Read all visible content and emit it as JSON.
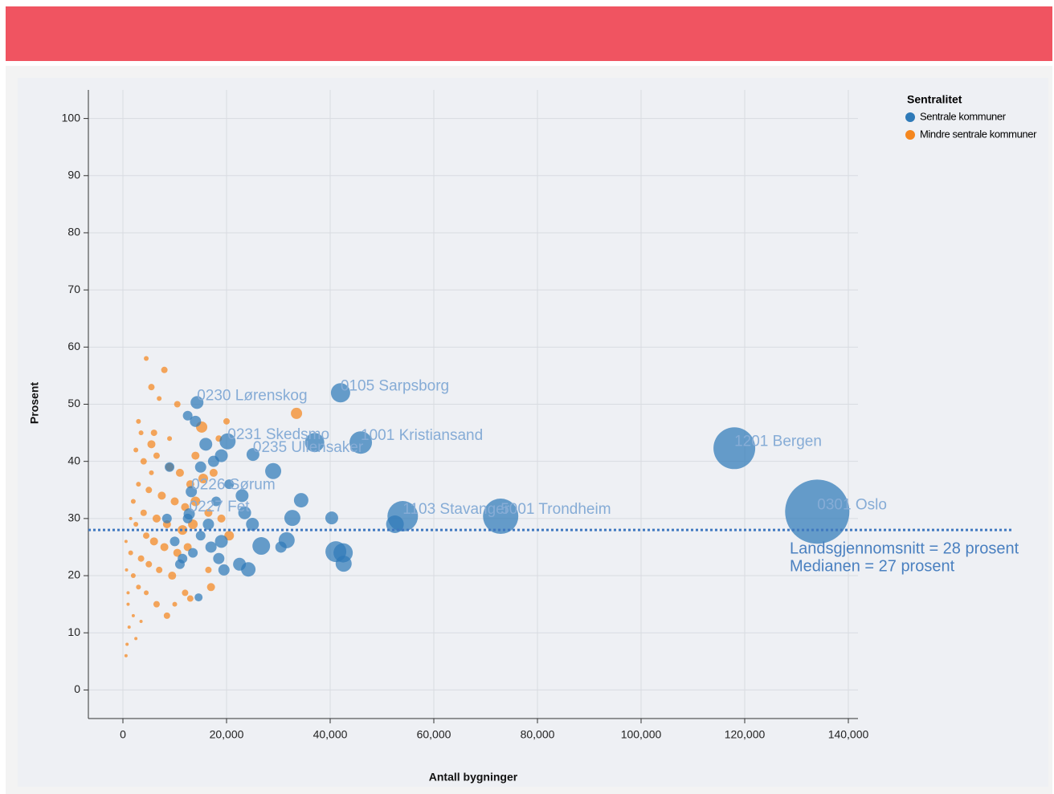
{
  "chart_data": {
    "type": "bubble",
    "x_label": "Antall bygninger",
    "y_label": "Prosent",
    "legend_title": "Sentralitet",
    "legend": "top-right",
    "grid": true,
    "xlim": [
      -6667,
      141860
    ],
    "xticks": [
      0,
      {
        "value": 20000,
        "label": "20,000"
      },
      {
        "value": 40000,
        "label": "40,000"
      },
      {
        "value": 60000,
        "label": "60,000"
      },
      {
        "value": 80000,
        "label": "80,000"
      },
      {
        "value": 100000,
        "label": "100,000"
      },
      {
        "value": 120000,
        "label": "120,000"
      },
      {
        "value": 140000,
        "label": "140,000"
      }
    ],
    "ylim": [
      -5,
      105
    ],
    "yticks": [
      0,
      10,
      20,
      30,
      40,
      50,
      60,
      70,
      80,
      90,
      100
    ],
    "reference_line": {
      "value": 28,
      "color": "#3f78c0"
    },
    "annotations": [
      "Landsgjennomsnitt = 28 prosent",
      "Medianen = 27 prosent"
    ],
    "series": [
      {
        "name": "Mindre sentrale kommuner",
        "color": "#f5871f",
        "x": [
          4500,
          8000,
          5500,
          7000,
          10500,
          3000,
          3500,
          6000,
          5500,
          2500,
          4000,
          6500,
          9000,
          11000,
          13000,
          15500,
          17500,
          3000,
          5000,
          7500,
          10000,
          12000,
          14000,
          16500,
          19000,
          2000,
          4000,
          6500,
          8500,
          11500,
          13500,
          20500,
          2500,
          4500,
          6000,
          8000,
          10500,
          12500,
          1500,
          3500,
          5000,
          7000,
          9500,
          12000,
          13000,
          17000,
          2000,
          3000,
          4500,
          6500,
          8500,
          1000,
          2000,
          3500,
          1200,
          2500,
          800,
          600,
          1000,
          700,
          600,
          1500,
          5500,
          9000,
          33500,
          18500,
          20000,
          14000,
          16500,
          10000,
          15200
        ],
        "values": [
          58,
          56,
          53,
          51,
          50,
          47,
          45,
          45,
          43,
          42,
          40,
          41,
          39,
          38,
          36,
          37,
          38,
          36,
          35,
          34,
          33,
          32,
          33,
          31,
          30,
          33,
          31,
          30,
          29,
          28,
          29,
          27,
          29,
          27,
          26,
          25,
          24,
          25,
          24,
          23,
          22,
          21,
          20,
          17,
          16,
          18,
          20,
          18,
          17,
          15,
          13,
          15,
          13,
          12,
          11,
          9,
          8,
          6,
          17,
          21,
          26,
          30,
          38,
          44,
          48.4,
          44,
          47,
          41,
          21,
          15,
          46
        ],
        "sizes": [
          9,
          16,
          16,
          9,
          16,
          9,
          9,
          16,
          25,
          9,
          16,
          16,
          25,
          25,
          25,
          36,
          25,
          9,
          16,
          25,
          25,
          25,
          36,
          25,
          25,
          9,
          16,
          25,
          25,
          36,
          36,
          36,
          9,
          16,
          25,
          25,
          25,
          25,
          9,
          16,
          16,
          16,
          25,
          16,
          16,
          25,
          9,
          9,
          9,
          16,
          16,
          4,
          4,
          4,
          4,
          4,
          4,
          4,
          4,
          4,
          4,
          4,
          9,
          9,
          49,
          16,
          16,
          25,
          16,
          9,
          49
        ],
        "labels": [
          null,
          null,
          null,
          null,
          null,
          null,
          null,
          null,
          null,
          null,
          null,
          null,
          null,
          null,
          null,
          null,
          null,
          null,
          null,
          null,
          null,
          null,
          null,
          null,
          null,
          null,
          null,
          null,
          null,
          null,
          null,
          null,
          null,
          null,
          null,
          null,
          null,
          null,
          null,
          null,
          null,
          null,
          null,
          null,
          null,
          null,
          null,
          null,
          null,
          null,
          null,
          null,
          null,
          null,
          null,
          null,
          null,
          null,
          null,
          null,
          null,
          null,
          null,
          null,
          null,
          null,
          null,
          null,
          null,
          null,
          null
        ]
      },
      {
        "name": "Sentrale kommuner",
        "color": "#2f7ab8",
        "x": [
          42000,
          14300,
          20200,
          25100,
          13200,
          12800,
          45900,
          54000,
          72900,
          118000,
          134000,
          37000,
          29000,
          34400,
          32700,
          40300,
          26700,
          31600,
          30500,
          41100,
          42500,
          42600,
          52500,
          24200,
          22500,
          25000,
          23000,
          23500,
          19000,
          18500,
          19500,
          16000,
          15000,
          17500,
          19000,
          14000,
          12500,
          16500,
          17000,
          15000,
          13500,
          11500,
          10000,
          11000,
          14600,
          12500,
          18000,
          20500,
          8500,
          9000
        ],
        "values": [
          52,
          50.3,
          43.5,
          41.2,
          34.7,
          30.8,
          43.3,
          30.4,
          30.4,
          42.3,
          31.2,
          43.3,
          38.3,
          33.2,
          30.1,
          30.1,
          25.2,
          26.2,
          25,
          24.2,
          24,
          22.1,
          29,
          21.1,
          22,
          29,
          34,
          31,
          26,
          23,
          21,
          43,
          39,
          40,
          41,
          47,
          48,
          29,
          25,
          27,
          24,
          23,
          26,
          22,
          16.2,
          30,
          33,
          36,
          30,
          39
        ],
        "sizes": [
          144,
          64,
          100,
          64,
          49,
          49,
          196,
          361,
          484,
          676,
          1600,
          144,
          100,
          81,
          100,
          64,
          121,
          100,
          49,
          169,
          144,
          100,
          121,
          81,
          64,
          64,
          64,
          64,
          64,
          49,
          49,
          64,
          49,
          49,
          64,
          49,
          36,
          49,
          49,
          36,
          36,
          36,
          36,
          36,
          25,
          36,
          36,
          36,
          36,
          36
        ],
        "labels": [
          "0105 Sarpsborg",
          "0230 Lørenskog",
          "0231 Skedsmo",
          "0235 Ullensaker",
          "0226 Sørum",
          "0227 Fet",
          "1001 Kristiansand",
          "1103 Stavanger",
          "5001 Trondheim",
          "1201 Bergen",
          "0301 Oslo",
          null,
          null,
          null,
          null,
          null,
          null,
          null,
          null,
          null,
          null,
          null,
          null,
          null,
          null,
          null,
          null,
          null,
          null,
          null,
          null,
          null,
          null,
          null,
          null,
          null,
          null,
          null,
          null,
          null,
          null,
          null,
          null,
          null,
          null,
          null,
          null,
          null,
          null,
          null
        ]
      }
    ]
  }
}
